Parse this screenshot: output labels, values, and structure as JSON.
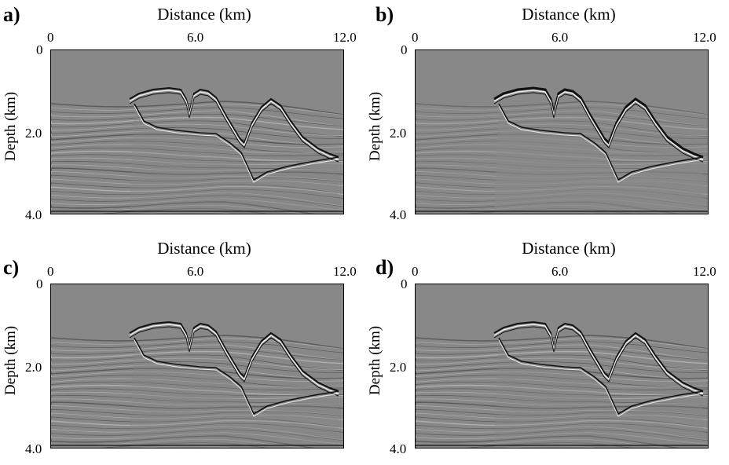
{
  "panels": [
    {
      "label": "a)",
      "xlabel": "Distance (km)",
      "ylabel": "Depth (km)",
      "xticks": [
        "0",
        "6.0",
        "12.0"
      ],
      "yticks": [
        "0",
        "2.0",
        "4.0"
      ]
    },
    {
      "label": "b)",
      "xlabel": "Distance (km)",
      "ylabel": "Depth (km)",
      "xticks": [
        "0",
        "6.0",
        "12.0"
      ],
      "yticks": [
        "0",
        "2.0",
        "4.0"
      ]
    },
    {
      "label": "c)",
      "xlabel": "Distance (km)",
      "ylabel": "Depth (km)",
      "xticks": [
        "0",
        "6.0",
        "12.0"
      ],
      "yticks": [
        "0",
        "2.0",
        "4.0"
      ]
    },
    {
      "label": "d)",
      "xlabel": "Distance (km)",
      "ylabel": "Depth (km)",
      "xticks": [
        "0",
        "6.0",
        "12.0"
      ],
      "yticks": [
        "0",
        "2.0",
        "4.0"
      ]
    }
  ],
  "colors": {
    "background": "#888888",
    "reflector_dark": "#111111",
    "reflector_light": "#ededed"
  }
}
